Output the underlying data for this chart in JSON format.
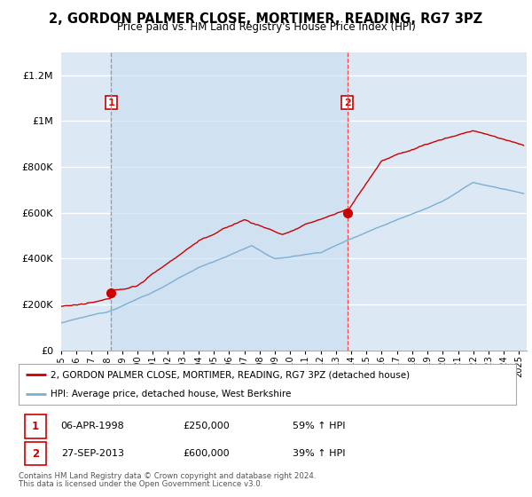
{
  "title": "2, GORDON PALMER CLOSE, MORTIMER, READING, RG7 3PZ",
  "subtitle": "Price paid vs. HM Land Registry's House Price Index (HPI)",
  "legend_property": "2, GORDON PALMER CLOSE, MORTIMER, READING, RG7 3PZ (detached house)",
  "legend_hpi": "HPI: Average price, detached house, West Berkshire",
  "transaction1": {
    "label": "1",
    "date": "06-APR-1998",
    "price": "£250,000",
    "hpi": "59% ↑ HPI",
    "year": 1998.27
  },
  "transaction2": {
    "label": "2",
    "date": "27-SEP-2013",
    "price": "£600,000",
    "hpi": "39% ↑ HPI",
    "year": 2013.74
  },
  "footnote1": "Contains HM Land Registry data © Crown copyright and database right 2024.",
  "footnote2": "This data is licensed under the Open Government Licence v3.0.",
  "xmin": 1995.0,
  "xmax": 2025.5,
  "ymin": 0,
  "ymax": 1300000,
  "plot_bg_color": "#dce9f5",
  "grid_color": "#ffffff",
  "property_line_color": "#cc0000",
  "hpi_line_color": "#7bafd4",
  "vline1_color": "#999999",
  "vline2_color": "#ff4444",
  "shade_color": "#c8ddf0",
  "marker_color": "#cc0000",
  "box_color": "#cc0000"
}
